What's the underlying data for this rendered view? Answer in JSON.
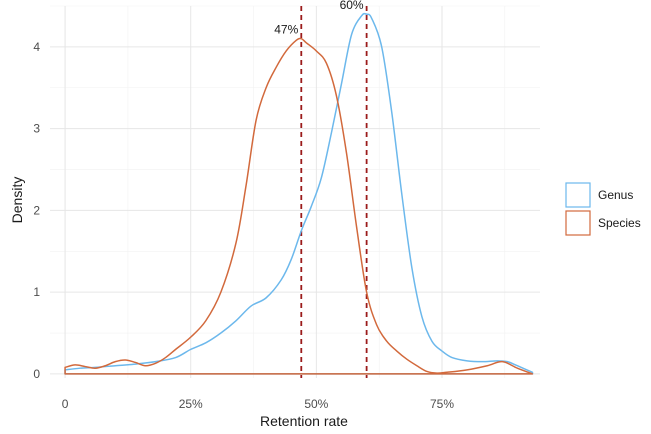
{
  "chart_data": {
    "type": "line",
    "title": "",
    "xlabel": "Retention rate",
    "ylabel": "Density",
    "xlim": [
      -0.03,
      0.945
    ],
    "ylim": [
      -0.05,
      4.5
    ],
    "grid": true,
    "legend_position": "right",
    "x_ticks": [
      {
        "value": 0.0,
        "label": "0"
      },
      {
        "value": 0.25,
        "label": "25%"
      },
      {
        "value": 0.5,
        "label": "50%"
      },
      {
        "value": 0.75,
        "label": "75%"
      }
    ],
    "y_ticks": [
      {
        "value": 0,
        "label": "0"
      },
      {
        "value": 1,
        "label": "1"
      },
      {
        "value": 2,
        "label": "2"
      },
      {
        "value": 3,
        "label": "3"
      },
      {
        "value": 4,
        "label": "4"
      }
    ],
    "series": [
      {
        "name": "Genus",
        "color": "#6cb8ec",
        "x": [
          0.0,
          0.03,
          0.06,
          0.1,
          0.14,
          0.18,
          0.22,
          0.25,
          0.28,
          0.31,
          0.34,
          0.37,
          0.4,
          0.43,
          0.45,
          0.47,
          0.49,
          0.51,
          0.53,
          0.55,
          0.57,
          0.59,
          0.6,
          0.61,
          0.63,
          0.65,
          0.67,
          0.69,
          0.71,
          0.73,
          0.75,
          0.77,
          0.8,
          0.83,
          0.86,
          0.88,
          0.9,
          0.93
        ],
        "y": [
          0.05,
          0.07,
          0.08,
          0.1,
          0.12,
          0.15,
          0.2,
          0.3,
          0.38,
          0.5,
          0.65,
          0.83,
          0.93,
          1.15,
          1.4,
          1.75,
          2.05,
          2.4,
          2.95,
          3.55,
          4.15,
          4.38,
          4.4,
          4.35,
          4.0,
          3.2,
          2.2,
          1.3,
          0.7,
          0.4,
          0.28,
          0.2,
          0.16,
          0.15,
          0.16,
          0.15,
          0.1,
          0.02
        ]
      },
      {
        "name": "Species",
        "color": "#d2693c",
        "x": [
          0.0,
          0.02,
          0.04,
          0.06,
          0.08,
          0.1,
          0.12,
          0.14,
          0.16,
          0.18,
          0.2,
          0.22,
          0.25,
          0.28,
          0.31,
          0.34,
          0.36,
          0.38,
          0.4,
          0.42,
          0.44,
          0.46,
          0.47,
          0.48,
          0.5,
          0.52,
          0.54,
          0.56,
          0.58,
          0.6,
          0.62,
          0.64,
          0.66,
          0.68,
          0.7,
          0.72,
          0.74,
          0.76,
          0.8,
          0.84,
          0.87,
          0.9,
          0.93
        ],
        "y": [
          0.08,
          0.11,
          0.09,
          0.07,
          0.1,
          0.15,
          0.17,
          0.14,
          0.1,
          0.13,
          0.2,
          0.3,
          0.45,
          0.65,
          1.0,
          1.6,
          2.3,
          3.1,
          3.5,
          3.75,
          3.95,
          4.08,
          4.1,
          4.05,
          3.95,
          3.8,
          3.4,
          2.7,
          1.8,
          1.0,
          0.6,
          0.4,
          0.28,
          0.18,
          0.1,
          0.03,
          0.01,
          0.02,
          0.05,
          0.1,
          0.15,
          0.07,
          0.0
        ]
      }
    ],
    "reference_lines": [
      {
        "x": 0.47,
        "label": "47%",
        "color": "#9b1b1b",
        "style": "dashed"
      },
      {
        "x": 0.6,
        "label": "60%",
        "color": "#9b1b1b",
        "style": "dashed"
      }
    ]
  }
}
